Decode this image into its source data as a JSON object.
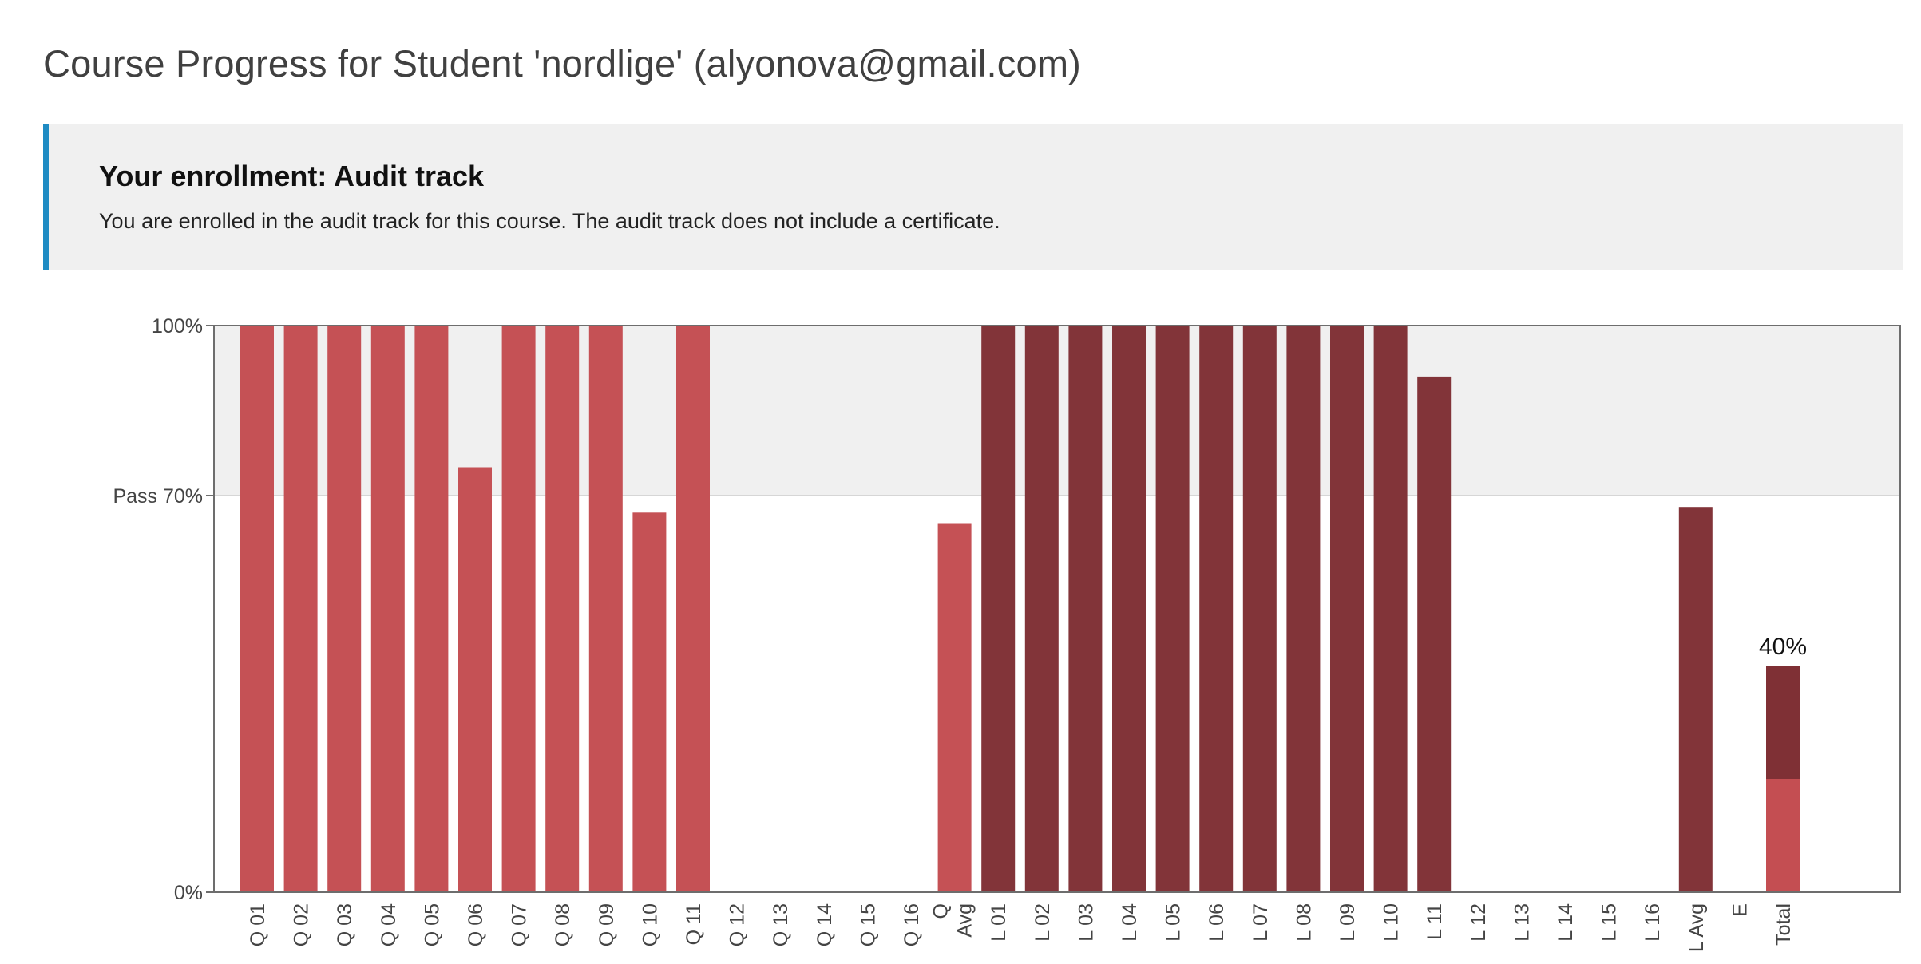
{
  "page": {
    "title": "Course Progress for Student 'nordlige' (alyonova@gmail.com)"
  },
  "enrollment": {
    "heading": "Your enrollment: Audit track",
    "message": "You are enrolled in the audit track for this course. The audit track does not include a certificate."
  },
  "colors": {
    "accent": "#1e8bc3",
    "quiz_bar": "#c44e52",
    "lab_bar": "#7f3035",
    "pass_band": "#f0f0f0"
  },
  "chart_data": {
    "type": "bar",
    "ylim": [
      0,
      100
    ],
    "y_ticks": [
      {
        "value": 0,
        "label": "0%"
      },
      {
        "value": 70,
        "label": "Pass 70%"
      },
      {
        "value": 100,
        "label": "100%"
      }
    ],
    "pass_threshold": 70,
    "categories": [
      {
        "label": "Q 01",
        "value": 100,
        "group": "quiz"
      },
      {
        "label": "Q 02",
        "value": 100,
        "group": "quiz"
      },
      {
        "label": "Q 03",
        "value": 100,
        "group": "quiz"
      },
      {
        "label": "Q 04",
        "value": 100,
        "group": "quiz"
      },
      {
        "label": "Q 05",
        "value": 100,
        "group": "quiz"
      },
      {
        "label": "Q 06",
        "value": 75,
        "group": "quiz"
      },
      {
        "label": "Q 07",
        "value": 100,
        "group": "quiz"
      },
      {
        "label": "Q 08",
        "value": 100,
        "group": "quiz"
      },
      {
        "label": "Q 09",
        "value": 100,
        "group": "quiz"
      },
      {
        "label": "Q 10",
        "value": 67,
        "group": "quiz"
      },
      {
        "label": "Q 11",
        "value": 100,
        "group": "quiz"
      },
      {
        "label": "Q 12",
        "value": 0,
        "group": "quiz"
      },
      {
        "label": "Q 13",
        "value": 0,
        "group": "quiz"
      },
      {
        "label": "Q 14",
        "value": 0,
        "group": "quiz"
      },
      {
        "label": "Q 15",
        "value": 0,
        "group": "quiz"
      },
      {
        "label": "Q 16",
        "value": 0,
        "group": "quiz"
      },
      {
        "label": "Q Avg",
        "value": 65,
        "group": "quiz",
        "two_line": true
      },
      {
        "label": "L 01",
        "value": 100,
        "group": "lab"
      },
      {
        "label": "L 02",
        "value": 100,
        "group": "lab"
      },
      {
        "label": "L 03",
        "value": 100,
        "group": "lab"
      },
      {
        "label": "L 04",
        "value": 100,
        "group": "lab"
      },
      {
        "label": "L 05",
        "value": 100,
        "group": "lab"
      },
      {
        "label": "L 06",
        "value": 100,
        "group": "lab"
      },
      {
        "label": "L 07",
        "value": 100,
        "group": "lab"
      },
      {
        "label": "L 08",
        "value": 100,
        "group": "lab"
      },
      {
        "label": "L 09",
        "value": 100,
        "group": "lab"
      },
      {
        "label": "L 10",
        "value": 100,
        "group": "lab"
      },
      {
        "label": "L 11",
        "value": 91,
        "group": "lab"
      },
      {
        "label": "L 12",
        "value": 0,
        "group": "lab"
      },
      {
        "label": "L 13",
        "value": 0,
        "group": "lab"
      },
      {
        "label": "L 14",
        "value": 0,
        "group": "lab"
      },
      {
        "label": "L 15",
        "value": 0,
        "group": "lab"
      },
      {
        "label": "L 16",
        "value": 0,
        "group": "lab"
      },
      {
        "label": "L Avg",
        "value": 68,
        "group": "lab"
      },
      {
        "label": "E",
        "value": 0,
        "group": "exam"
      },
      {
        "label": "Total",
        "value": 40,
        "group": "total",
        "stack": [
          20,
          20
        ],
        "data_label": "40%"
      }
    ]
  }
}
